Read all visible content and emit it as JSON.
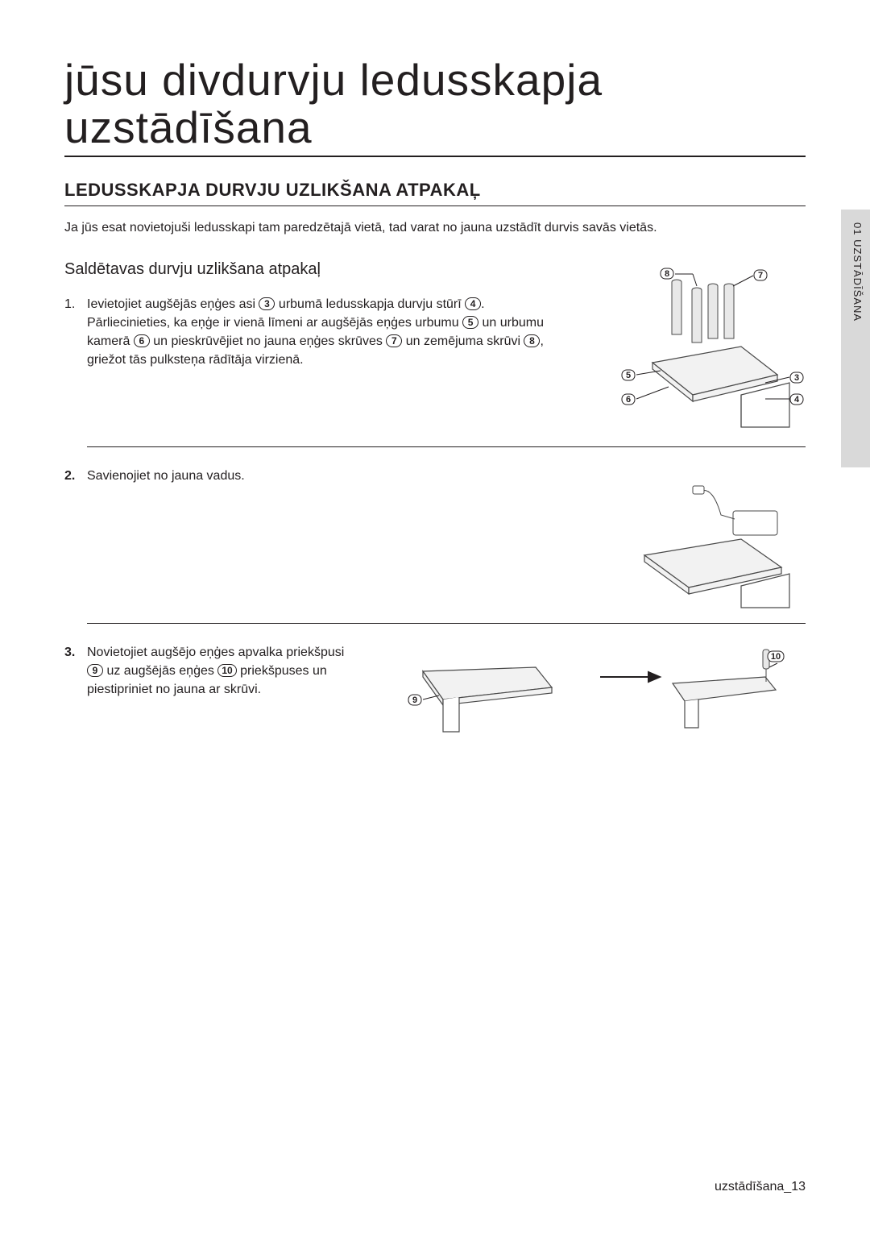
{
  "page": {
    "title": "jūsu divdurvju ledusskapja uzstādīšana",
    "section_title": "LEDUSSKAPJA DURVJU UZLIKŠANA ATPAKAĻ",
    "intro": "Ja jūs esat novietojuši ledusskapi tam paredzētajā vietā, tad varat no jauna uzstādīt durvis savās vietās.",
    "subheading": "Saldētavas durvju uzlikšana atpakaļ",
    "side_tab": "01 UZSTĀDĪŠANA",
    "footer": "uzstādīšana_13"
  },
  "steps": [
    {
      "num": "1",
      "bold_num": false,
      "parts": [
        {
          "t": "Ievietojiet augšējās eņģes asi "
        },
        {
          "c": "3"
        },
        {
          "t": " urbumā ledusskapja durvju stūrī "
        },
        {
          "c": "4"
        },
        {
          "t": ". Pārliecinieties, ka eņģe ir vienā līmeni ar augšējās eņģes urbumu "
        },
        {
          "c": "5"
        },
        {
          "t": " un urbumu kamerā "
        },
        {
          "c": "6"
        },
        {
          "t": " un pieskrūvējiet no jauna eņģes skrūves "
        },
        {
          "c": "7"
        },
        {
          "t": " un zemējuma skrūvi "
        },
        {
          "c": "8"
        },
        {
          "t": ", griežot tās pulksteņa rādītāja virzienā."
        }
      ],
      "callouts": [
        "3",
        "4",
        "5",
        "6",
        "7",
        "8"
      ]
    },
    {
      "num": "2",
      "bold_num": true,
      "parts": [
        {
          "t": "Savienojiet no jauna vadus."
        }
      ],
      "callouts": []
    },
    {
      "num": "3",
      "bold_num": true,
      "parts": [
        {
          "t": "Novietojiet augšējo eņģes apvalka priekšpusi "
        },
        {
          "c": "9"
        },
        {
          "t": " uz augšējās eņģes "
        },
        {
          "c": "10"
        },
        {
          "t": " priekšpuses un piestipriniet no jauna ar skrūvi."
        }
      ],
      "callouts": [
        "9",
        "10"
      ]
    }
  ],
  "colors": {
    "text": "#231f20",
    "tab_bg": "#d9d9d9",
    "stroke": "#4a4a4a",
    "fill_light": "#f2f2f2"
  }
}
